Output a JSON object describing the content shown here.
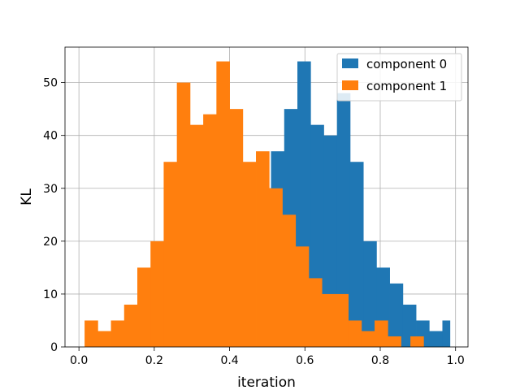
{
  "chart_data": {
    "type": "bar",
    "title": "",
    "xlabel": "iteration",
    "ylabel": "KL",
    "xlim": [
      -0.037,
      1.033
    ],
    "ylim": [
      0,
      56.7
    ],
    "xticks": [
      0.0,
      0.2,
      0.4,
      0.6,
      0.8,
      1.0
    ],
    "xtick_labels": [
      "0.0",
      "0.2",
      "0.4",
      "0.6",
      "0.8",
      "1.0"
    ],
    "yticks": [
      0,
      10,
      20,
      30,
      40,
      50
    ],
    "ytick_labels": [
      "0",
      "10",
      "20",
      "30",
      "40",
      "50"
    ],
    "grid": true,
    "legend_position": "top-right",
    "series": [
      {
        "name": "component 0",
        "color": "#1f77b4",
        "bin_edges": [
          0.51,
          0.545,
          0.58,
          0.615,
          0.65,
          0.685,
          0.72,
          0.755,
          0.79,
          0.825,
          0.86,
          0.895,
          0.93,
          0.965,
          0.985
        ],
        "counts": [
          37,
          45,
          54,
          42,
          40,
          48,
          35,
          20,
          15,
          12,
          8,
          5,
          3,
          5
        ]
      },
      {
        "name": "component 1",
        "color": "#ff7f0e",
        "bin_edges": [
          0.015,
          0.05,
          0.085,
          0.12,
          0.155,
          0.19,
          0.225,
          0.26,
          0.295,
          0.33,
          0.365,
          0.4,
          0.435,
          0.47,
          0.505,
          0.54,
          0.575,
          0.61,
          0.645,
          0.68,
          0.715,
          0.75,
          0.785,
          0.82,
          0.855,
          0.89
        ],
        "counts": [
          5,
          3,
          5,
          8,
          15,
          20,
          35,
          50,
          42,
          44,
          54,
          45,
          35,
          37,
          30,
          25,
          19,
          13,
          10,
          10,
          5,
          3,
          5,
          2,
          0
        ]
      },
      {
        "name": "",
        "color": "#ff7f0e",
        "bin_edges": [
          0.88,
          0.915
        ],
        "counts": [
          2
        ]
      }
    ]
  }
}
